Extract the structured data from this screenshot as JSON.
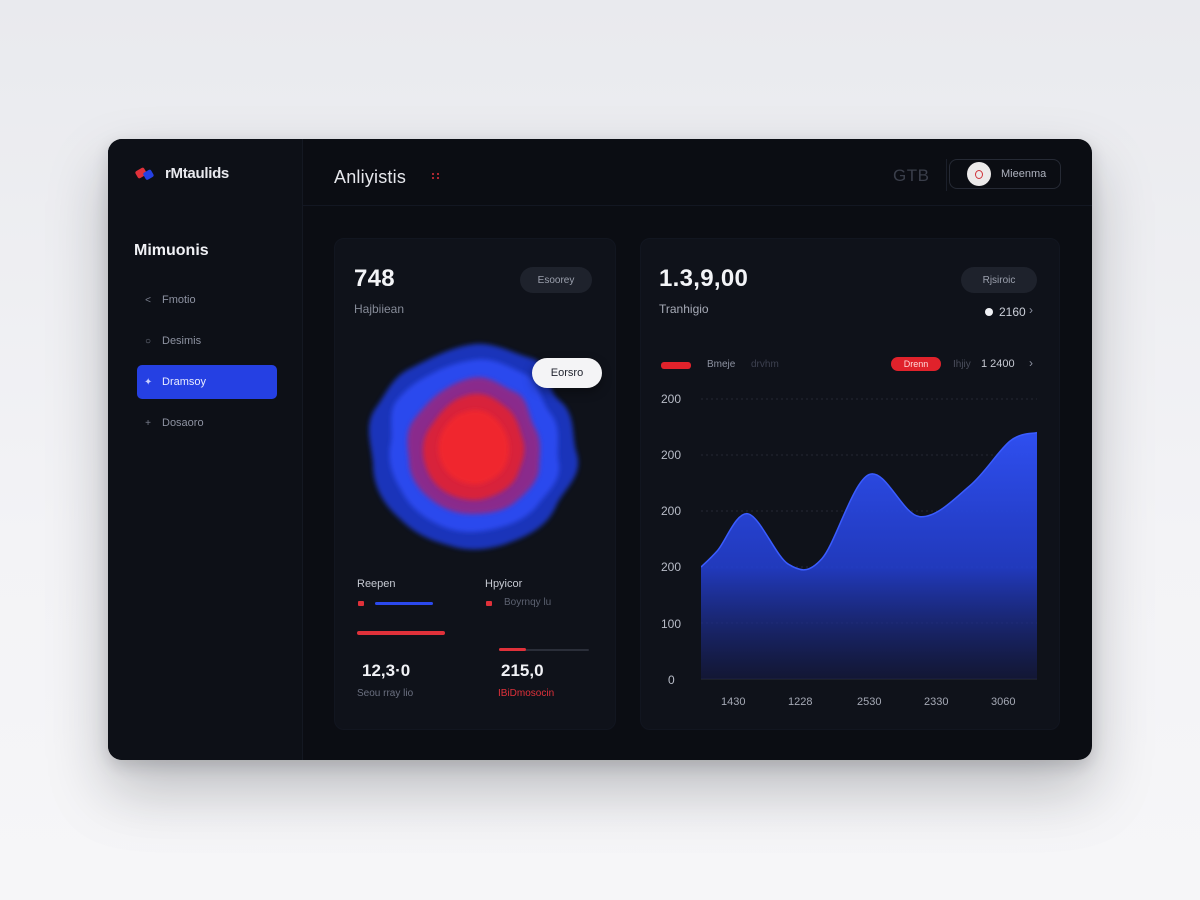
{
  "app": {
    "logo_text": "rMtaulids",
    "page_title": "Anliyistis",
    "top_code": "GTB",
    "user_label": "Mieenma"
  },
  "sidebar": {
    "title": "Mimuonis",
    "items": [
      {
        "label": "Fmotio",
        "icon": "chevron-left-icon",
        "glyph": "<"
      },
      {
        "label": "Desimis",
        "icon": "circle-icon",
        "glyph": "○"
      },
      {
        "label": "Dramsoy",
        "icon": "sparkle-icon",
        "glyph": "✦",
        "active": true
      },
      {
        "label": "Dosaoro",
        "icon": "plus-icon",
        "glyph": "+"
      }
    ]
  },
  "left_card": {
    "value": "748",
    "label": "Hajbiiean",
    "pill": "Esoorey",
    "tooltip": "Eorsro",
    "stats": [
      {
        "title": "Reepen",
        "legend": "",
        "value": "12,3·0",
        "sub": "Seou rray lio"
      },
      {
        "title": "Hpyicor",
        "legend": "Boyrnqy lu",
        "value": "215,0",
        "sub": "IBiDmosocin"
      }
    ]
  },
  "right_card": {
    "value": "1.3,9,00",
    "label": "Tranhigio",
    "pill": "Rjsiroic",
    "sub_value": "2160",
    "legend_a": "Bmeje",
    "legend_a_note": "drvhm",
    "chip": "Drenn",
    "legend_b_note": "Ihjiy",
    "legend_b_value": "1 2400"
  },
  "chart_data": {
    "type": "area",
    "x_ticks": [
      "1430",
      "1228",
      "2530",
      "2330",
      "3060"
    ],
    "y_ticks": [
      "200",
      "200",
      "200",
      "200",
      "100",
      "0"
    ],
    "y_range": [
      0,
      500
    ],
    "points": [
      {
        "x": 0.0,
        "y": 200
      },
      {
        "x": 0.05,
        "y": 230
      },
      {
        "x": 0.14,
        "y": 295
      },
      {
        "x": 0.26,
        "y": 205
      },
      {
        "x": 0.36,
        "y": 215
      },
      {
        "x": 0.5,
        "y": 365
      },
      {
        "x": 0.65,
        "y": 290
      },
      {
        "x": 0.8,
        "y": 345
      },
      {
        "x": 0.92,
        "y": 425
      },
      {
        "x": 1.0,
        "y": 440
      }
    ],
    "color": "#2f4ff0",
    "grid": true
  },
  "colors": {
    "accent_blue": "#2540e3",
    "accent_red": "#e0313a",
    "window_bg": "#0b0d13"
  }
}
